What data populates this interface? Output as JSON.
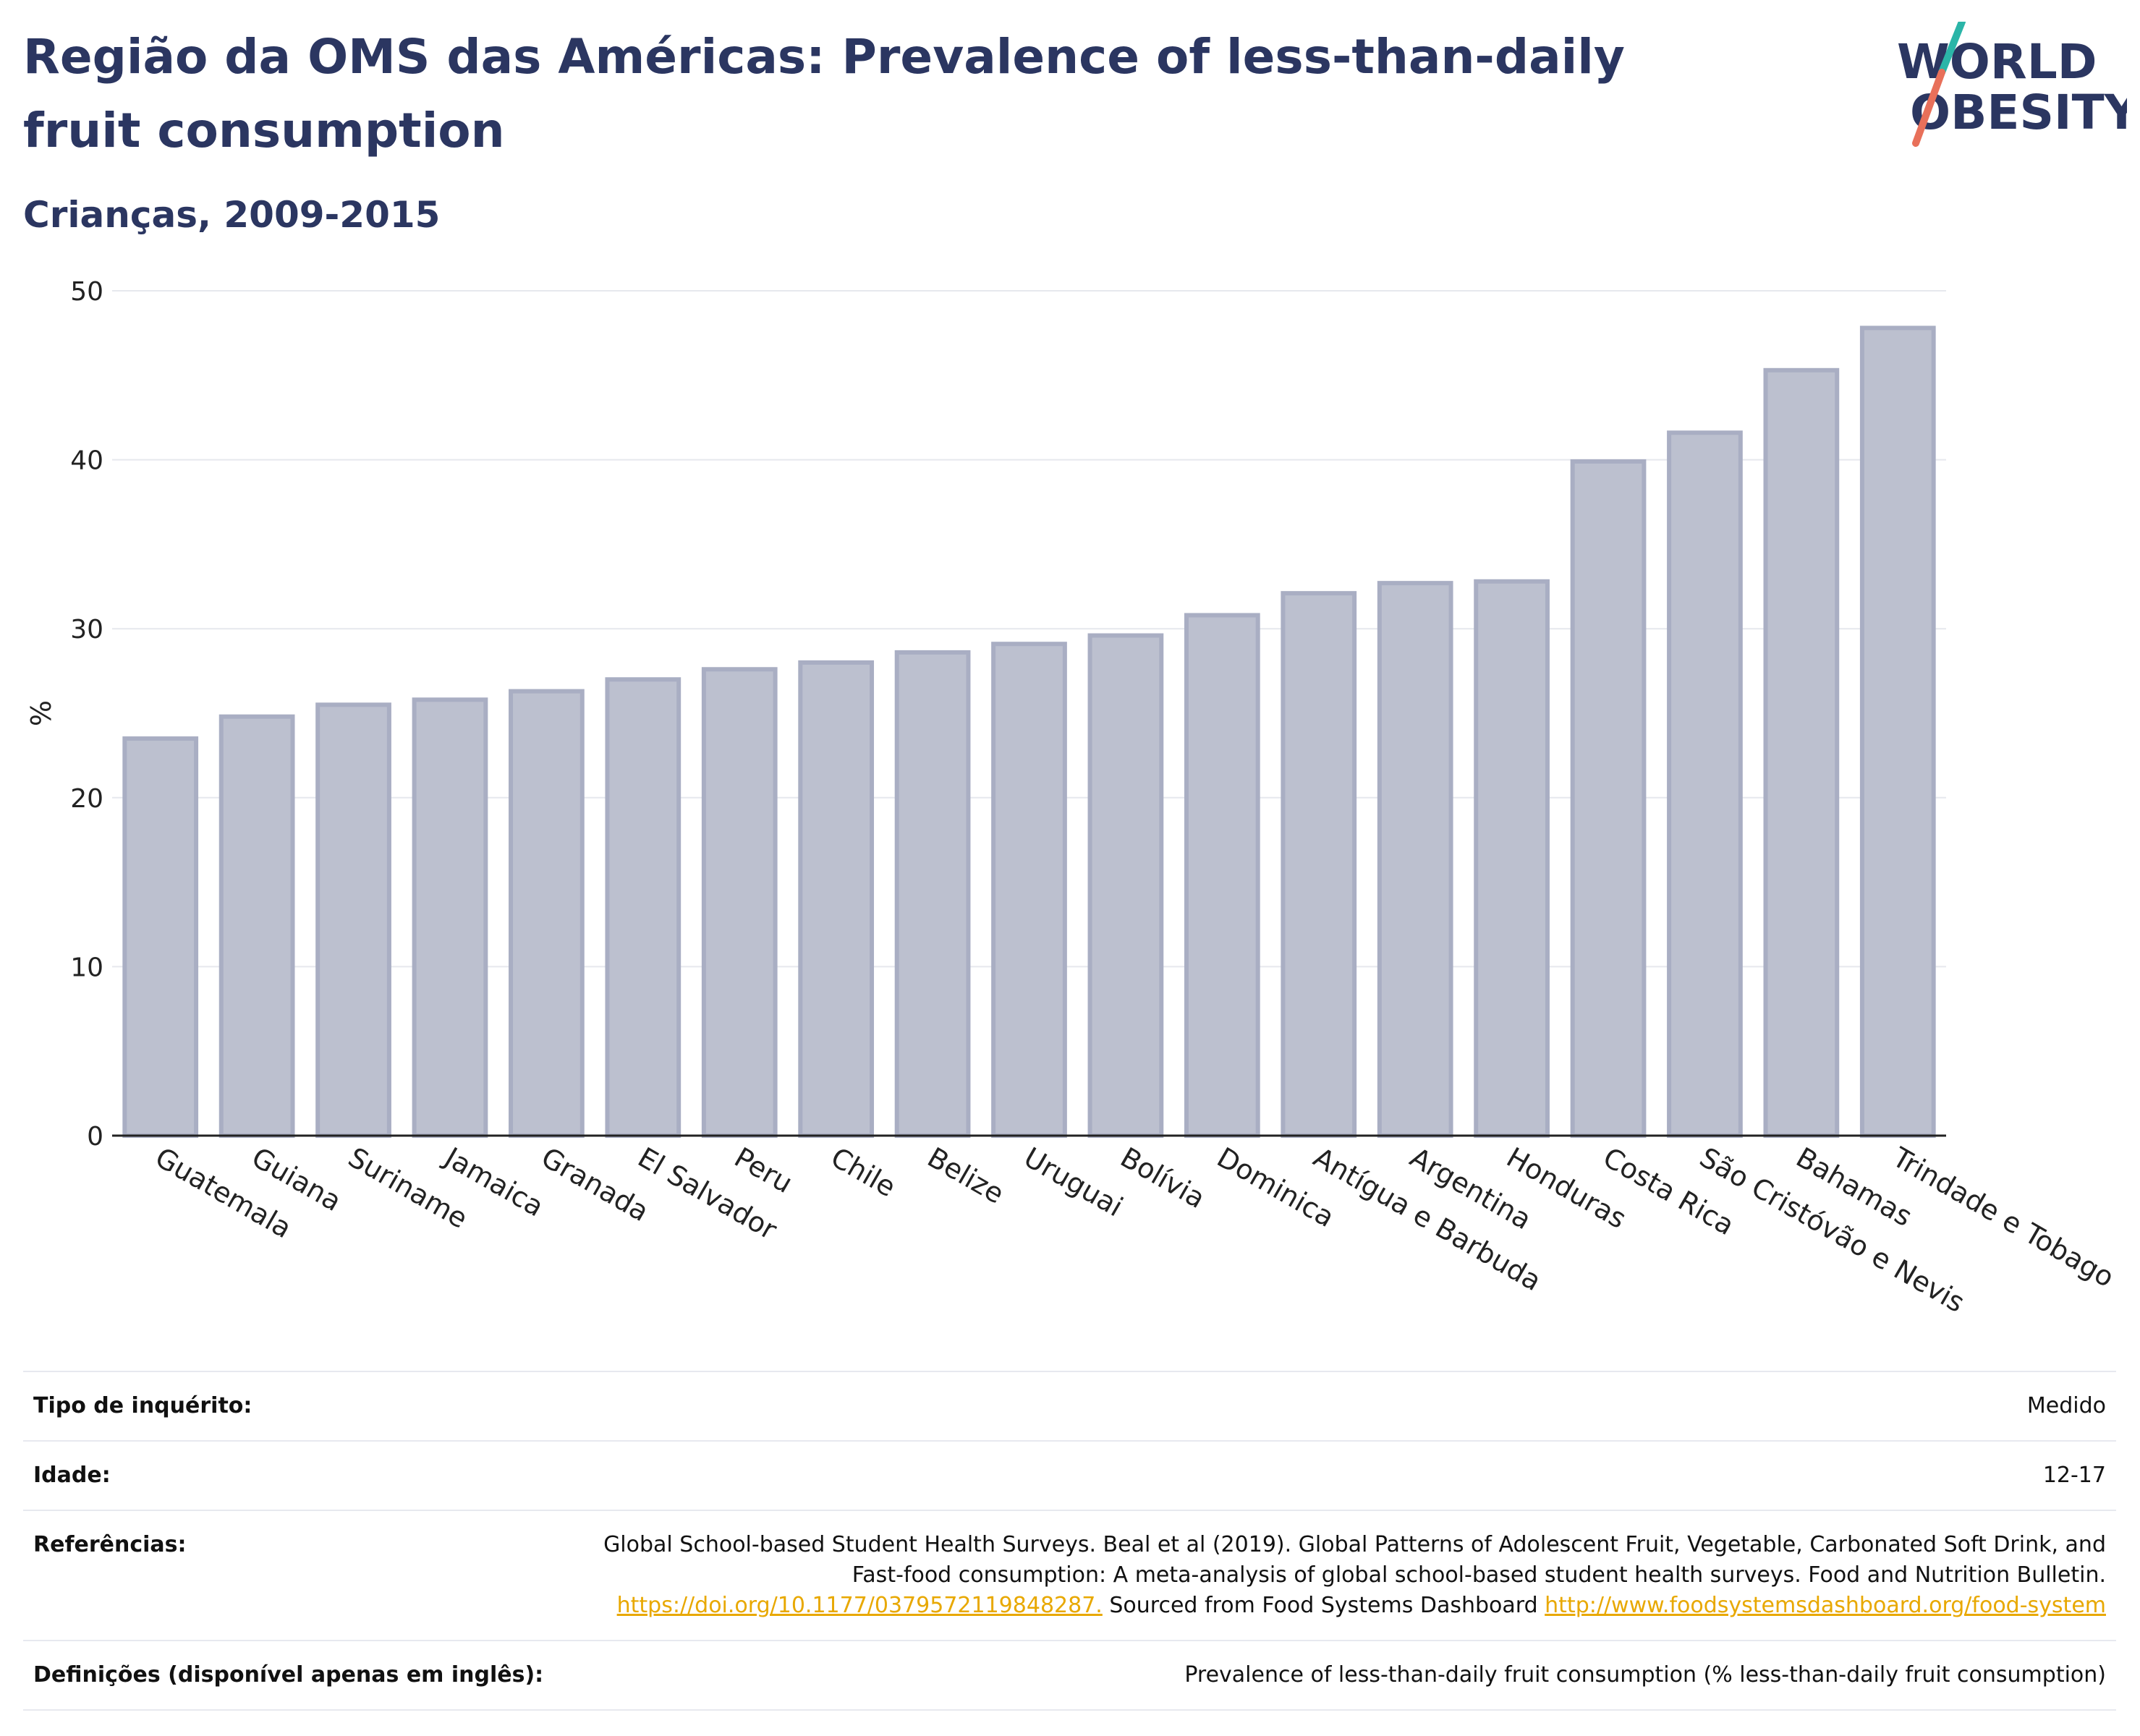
{
  "header": {
    "title": "Região da OMS das Américas: Prevalence of less-than-daily fruit consumption",
    "subtitle": "Crianças, 2009-2015"
  },
  "logo": {
    "line1": "WORLD",
    "line2": "OBESITY",
    "accent_teal": "#2bb5a8",
    "accent_red": "#e8705a",
    "text_color": "#2b3661"
  },
  "chart_data": {
    "type": "bar",
    "title": "Região da OMS das Américas: Prevalence of less-than-daily fruit consumption",
    "subtitle": "Crianças, 2009-2015",
    "xlabel": "",
    "ylabel": "%",
    "ylim": [
      0,
      50
    ],
    "yticks": [
      0,
      10,
      20,
      30,
      40,
      50
    ],
    "grid": true,
    "bar_color": "#bcc0cf",
    "bar_edge_color": "#a9aec3",
    "categories": [
      "Guatemala",
      "Guiana",
      "Suriname",
      "Jamaica",
      "Granada",
      "El Salvador",
      "Peru",
      "Chile",
      "Belize",
      "Uruguai",
      "Bolívia",
      "Dominica",
      "Antígua e Barbuda",
      "Argentina",
      "Honduras",
      "Costa Rica",
      "São Cristóvão e Nevis",
      "Bahamas",
      "Trindade e Tobago"
    ],
    "values": [
      23.5,
      24.8,
      25.5,
      25.8,
      26.3,
      27.0,
      27.6,
      28.0,
      28.6,
      29.1,
      29.6,
      30.8,
      32.1,
      32.7,
      32.8,
      39.9,
      41.6,
      45.3,
      47.8
    ]
  },
  "info": {
    "survey_type_label": "Tipo de inquérito:",
    "survey_type_value": "Medido",
    "age_label": "Idade:",
    "age_value": "12-17",
    "references_label": "Referências:",
    "references_text": "Global School-based Student Health Surveys. Beal et al (2019). Global Patterns of Adolescent Fruit, Vegetable, Carbonated Soft Drink, and Fast-food consumption: A meta-analysis of global school-based student health surveys. Food and Nutrition Bulletin.",
    "references_link1": "https://doi.org/10.1177/0379572119848287.",
    "references_middle": " Sourced from Food Systems Dashboard ",
    "references_link2": "http://www.foodsystemsdashboard.org/food-system",
    "definitions_label": "Definições (disponível apenas em inglês):",
    "definitions_value": "Prevalence of less-than-daily fruit consumption (% less-than-daily fruit consumption)"
  }
}
